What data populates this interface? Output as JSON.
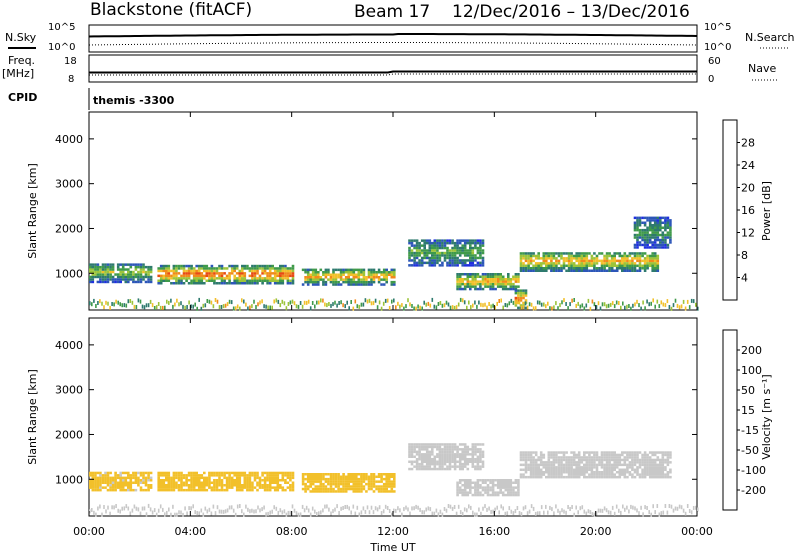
{
  "header": {
    "station": "Blackstone (fitACF)",
    "beam": "Beam 17",
    "date_range": "12/Dec/2016 – 13/Dec/2016"
  },
  "noise_panel": {
    "left_label": "N.Sky",
    "left_ticks": [
      "10^5",
      "10^0"
    ],
    "right_ticks": [
      "10^5",
      "10^0"
    ],
    "right_label": "N.Search"
  },
  "freq_panel": {
    "left_label_top": "Freq.",
    "left_label_unit": "[MHz]",
    "left_ticks": [
      "18",
      "8"
    ],
    "right_ticks": [
      "60",
      "0"
    ],
    "right_label": "Nave"
  },
  "cpid_panel": {
    "label": "CPID",
    "value": "themis -3300"
  },
  "x_axis": {
    "label": "Time UT",
    "ticks": [
      "00:00",
      "04:00",
      "08:00",
      "12:00",
      "16:00",
      "20:00",
      "00:00"
    ]
  },
  "colors": {
    "power_scale": [
      "#1f2fe0",
      "#2c56b8",
      "#2e7a6e",
      "#3f9a4a",
      "#9cc43a",
      "#f2c02a",
      "#f08a1c",
      "#e84a14",
      "#d81a10"
    ],
    "velocity_scale": [
      "#1f35b8",
      "#2c6fb0",
      "#3f8a3a",
      "#7fc44a",
      "#c8c8c8",
      "#f2c02a",
      "#f08a1c",
      "#e85014",
      "#e01010"
    ]
  },
  "chart_data": [
    {
      "type": "heatmap",
      "title": "Power",
      "ylabel": "Slant Range [km]",
      "xlabel": "",
      "y_ticks": [
        "4000",
        "3000",
        "2000",
        "1000"
      ],
      "ylim": [
        180,
        4600
      ],
      "xlim_hours": [
        0,
        24
      ],
      "colorbar": {
        "label": "Power [dB]",
        "ticks": [
          "28",
          "24",
          "20",
          "16",
          "12",
          "8",
          "4"
        ],
        "range": [
          0,
          32
        ]
      },
      "grid": false,
      "bands": [
        {
          "t0": 0.0,
          "t1": 2.5,
          "r_center": 1000,
          "r_half": 220,
          "peak_db": 16
        },
        {
          "t0": 2.7,
          "t1": 8.0,
          "r_center": 950,
          "r_half": 200,
          "peak_db": 26
        },
        {
          "t0": 8.4,
          "t1": 12.0,
          "r_center": 900,
          "r_half": 180,
          "peak_db": 22
        },
        {
          "t0": 12.6,
          "t1": 15.5,
          "r_center": 1450,
          "r_half": 300,
          "peak_db": 14
        },
        {
          "t0": 14.5,
          "t1": 17.0,
          "r_center": 800,
          "r_half": 180,
          "peak_db": 22
        },
        {
          "t0": 16.8,
          "t1": 17.3,
          "r_center": 400,
          "r_half": 200,
          "peak_db": 26
        },
        {
          "t0": 17.0,
          "t1": 22.5,
          "r_center": 1250,
          "r_half": 220,
          "peak_db": 22
        },
        {
          "t0": 21.5,
          "t1": 23.0,
          "r_center": 1900,
          "r_half": 350,
          "peak_db": 12
        }
      ]
    },
    {
      "type": "heatmap",
      "title": "Velocity",
      "ylabel": "Slant Range [km]",
      "xlabel": "Time UT",
      "y_ticks": [
        "4000",
        "3000",
        "2000",
        "1000"
      ],
      "ylim": [
        180,
        4600
      ],
      "xlim_hours": [
        0,
        24
      ],
      "colorbar": {
        "label": "Velocity [m s⁻¹]",
        "ticks": [
          "200",
          "100",
          "50",
          "15",
          "-15",
          "-50",
          "-100",
          "-200"
        ],
        "range": [
          -250,
          250
        ]
      },
      "grid": false,
      "bands": [
        {
          "t0": 0.0,
          "t1": 2.5,
          "r_center": 950,
          "r_half": 220,
          "velocity": -40
        },
        {
          "t0": 2.7,
          "t1": 8.0,
          "r_center": 950,
          "r_half": 220,
          "velocity": -60
        },
        {
          "t0": 8.4,
          "t1": 12.0,
          "r_center": 900,
          "r_half": 200,
          "velocity": -45
        },
        {
          "t0": 12.6,
          "t1": 15.5,
          "r_center": 1500,
          "r_half": 300,
          "velocity": 0
        },
        {
          "t0": 14.5,
          "t1": 17.0,
          "r_center": 800,
          "r_half": 180,
          "velocity": 0
        },
        {
          "t0": 17.0,
          "t1": 23.0,
          "r_center": 1300,
          "r_half": 280,
          "velocity": 0
        }
      ]
    }
  ]
}
